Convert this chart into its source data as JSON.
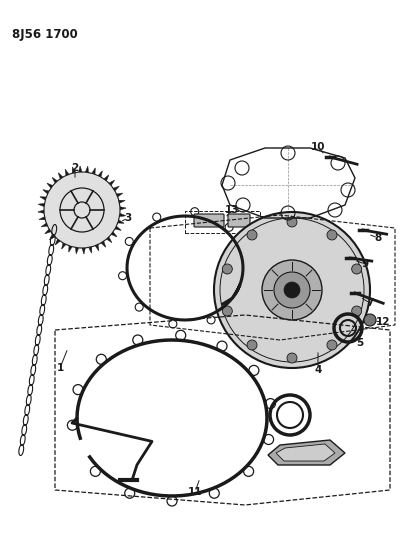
{
  "title": "8J56 1700",
  "bg_color": "#ffffff",
  "fig_width": 4.0,
  "fig_height": 5.33,
  "dpi": 100,
  "line_color": "#1a1a1a",
  "gray_fill": "#c0c0c0",
  "dark_fill": "#555555"
}
